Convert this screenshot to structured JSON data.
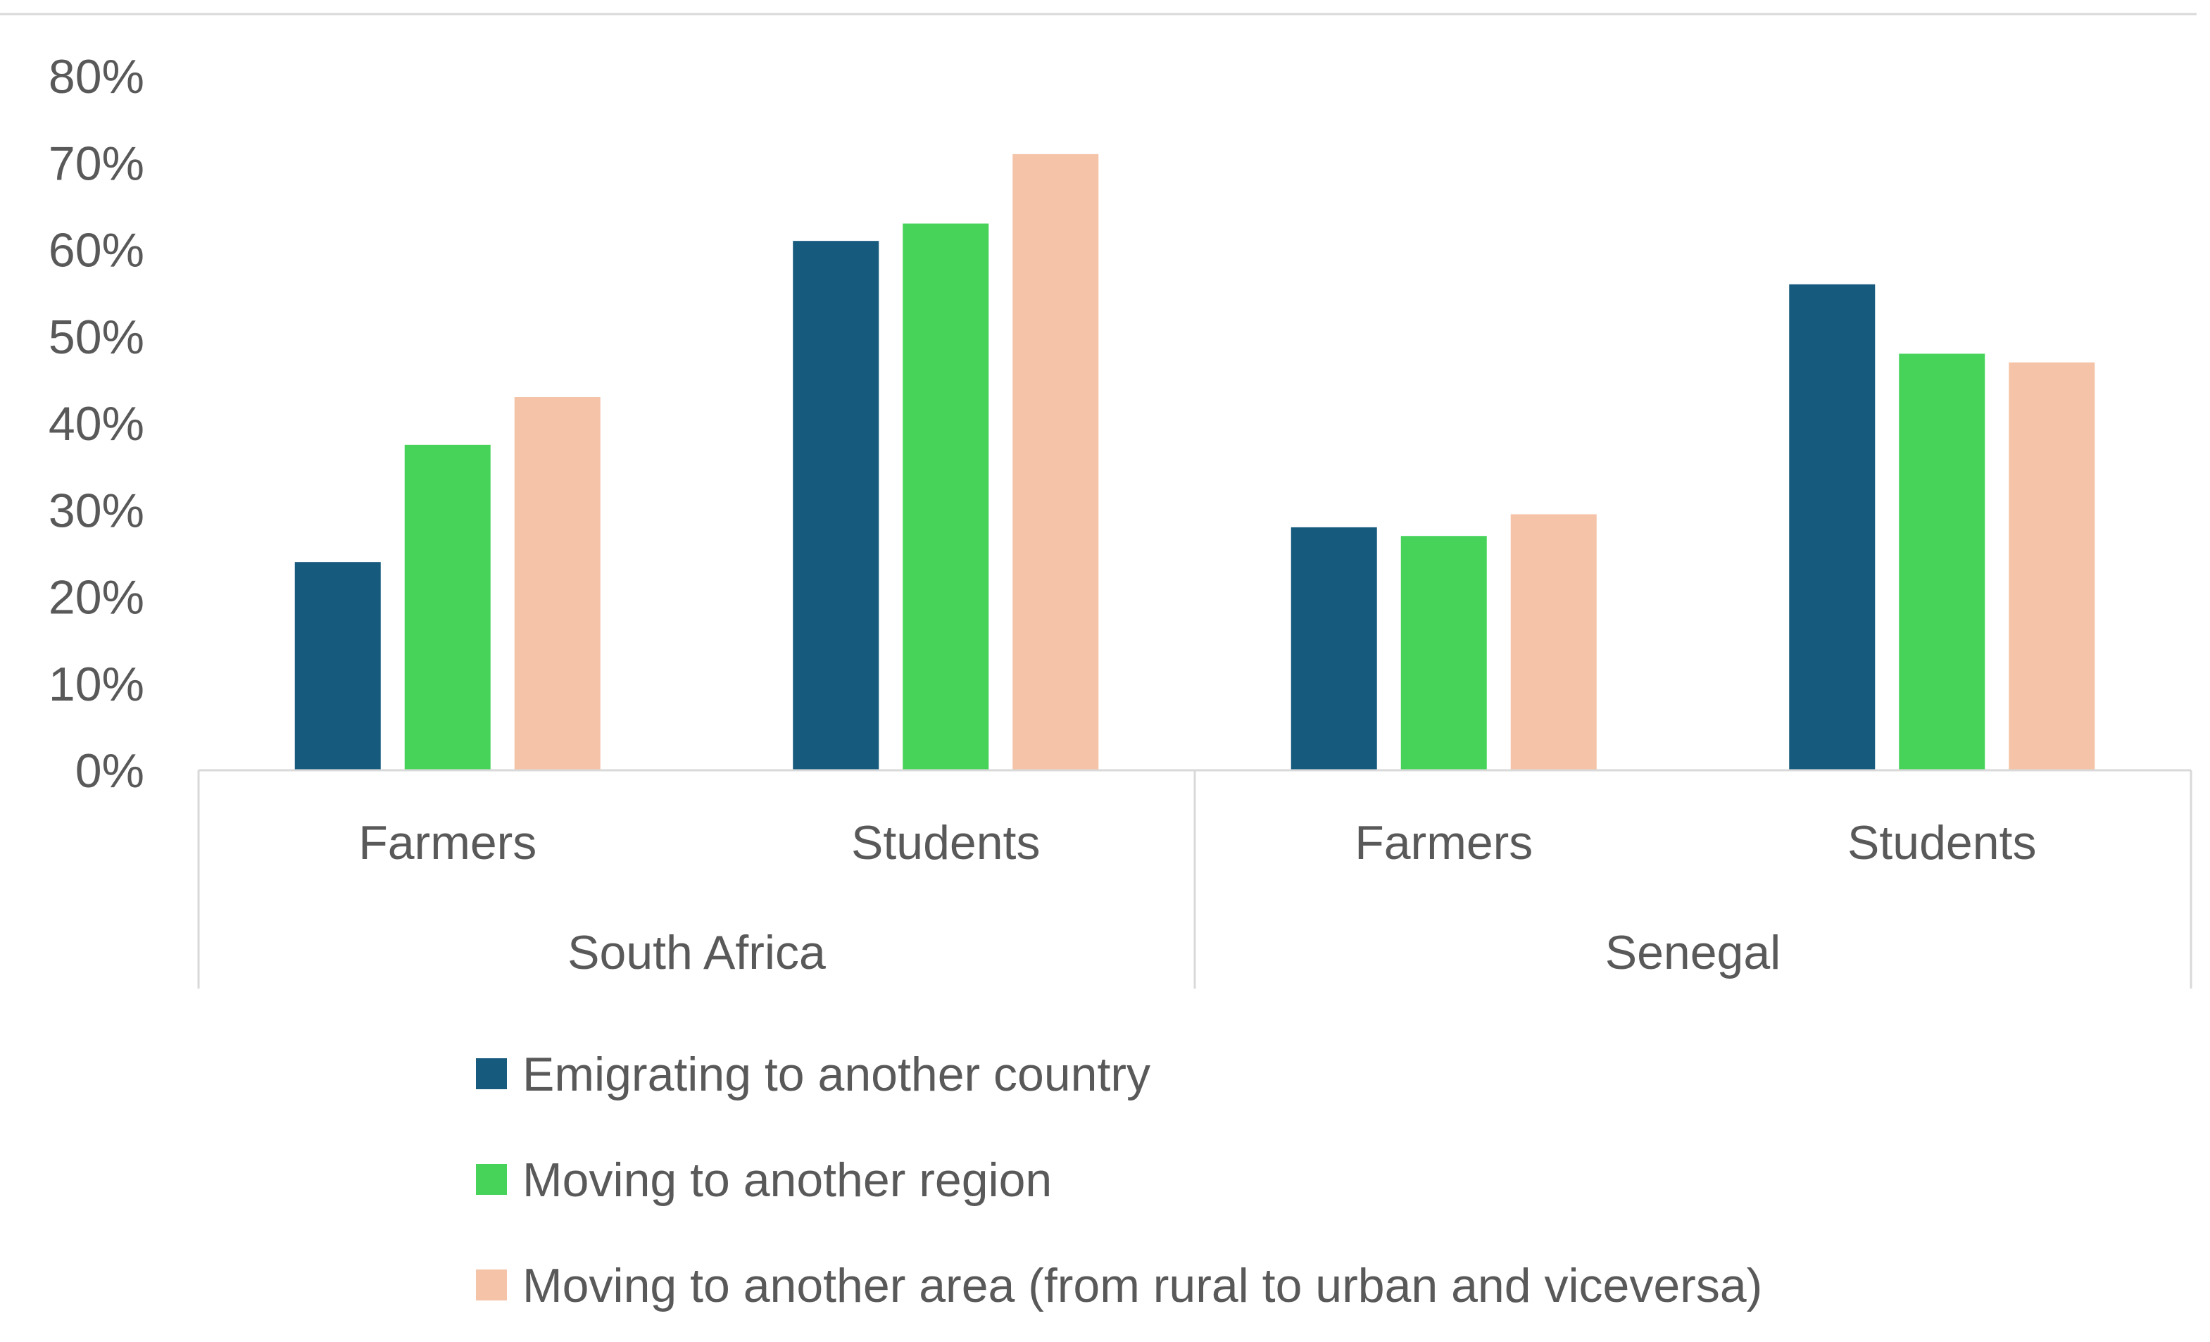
{
  "chart_data": {
    "type": "bar",
    "title": "",
    "xlabel": "",
    "ylabel": "",
    "ylim": [
      0,
      80
    ],
    "yticks": [
      "0%",
      "10%",
      "20%",
      "30%",
      "40%",
      "50%",
      "60%",
      "70%",
      "80%"
    ],
    "grid": false,
    "legend_position": "bottom",
    "groups": [
      {
        "label": "South Africa",
        "categories": [
          "Farmers",
          "Students"
        ]
      },
      {
        "label": "Senegal",
        "categories": [
          "Farmers",
          "Students"
        ]
      }
    ],
    "series": [
      {
        "name": "Emigrating to another country",
        "color": "#165a7d",
        "values": [
          24,
          61,
          28,
          56
        ]
      },
      {
        "name": "Moving to another region",
        "color": "#47d35a",
        "values": [
          37.5,
          63,
          27,
          48
        ]
      },
      {
        "name": "Moving to another area (from rural to urban and viceversa)",
        "color": "#f5c4a8",
        "values": [
          43,
          71,
          29.5,
          47
        ]
      }
    ]
  }
}
